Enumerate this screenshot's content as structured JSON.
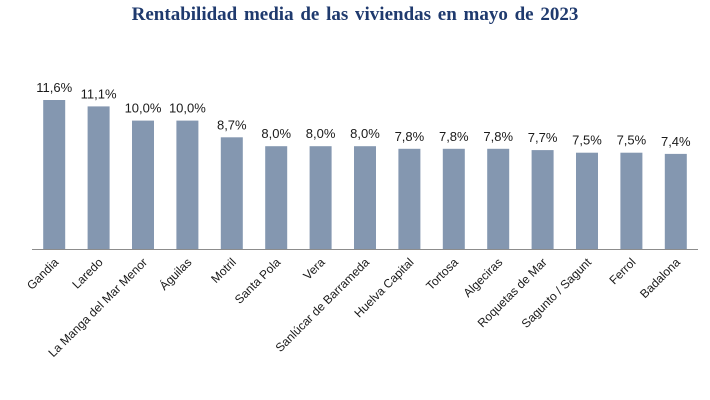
{
  "chart_data": {
    "type": "bar",
    "title": "Rentabilidad media de las viviendas  en mayo  de 2023",
    "xlabel": "",
    "ylabel": "",
    "ylim": [
      0,
      12.5
    ],
    "grid": false,
    "bar_color": "#8497b0",
    "categories": [
      "Gandia",
      "Laredo",
      "La Manga del Mar Menor",
      "Águilas",
      "Motril",
      "Santa Pola",
      "Vera",
      "Sanlúcar de Barrameda",
      "Huelva Capital",
      "Tortosa",
      "Algeciras",
      "Roquetas de Mar",
      "Sagunto / Sagunt",
      "Ferrol",
      "Badalona"
    ],
    "values": [
      11.6,
      11.1,
      10.0,
      10.0,
      8.7,
      8.0,
      8.0,
      8.0,
      7.8,
      7.8,
      7.8,
      7.7,
      7.5,
      7.5,
      7.4
    ],
    "data_labels": [
      "11,6%",
      "11,1%",
      "10,0%",
      "10,0%",
      "8,7%",
      "8,0%",
      "8,0%",
      "8,0%",
      "7,8%",
      "7,8%",
      "7,8%",
      "7,7%",
      "7,5%",
      "7,5%",
      "7,4%"
    ]
  }
}
